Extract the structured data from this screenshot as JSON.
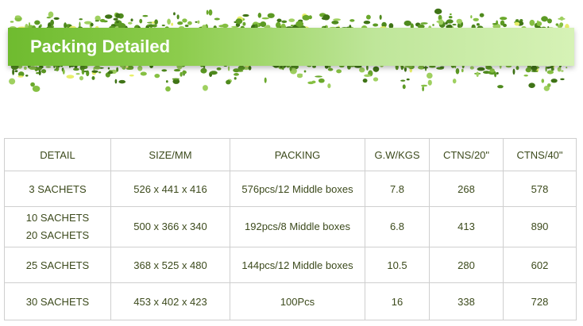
{
  "banner": {
    "title": "Packing Detailed",
    "colors": {
      "start": "#6fbb2f",
      "end": "#d6f2b6"
    }
  },
  "table": {
    "headers": [
      "DETAIL",
      "SIZE/MM",
      "PACKING",
      "G.W/KGS",
      "CTNS/20\"",
      "CTNS/40\""
    ],
    "rows": [
      {
        "detail": [
          "3 SACHETS"
        ],
        "size": "526 x 441 x 416",
        "packing": "576pcs/12 Middle boxes",
        "gw": "7.8",
        "ctns20": "268",
        "ctns40": "578"
      },
      {
        "detail": [
          "10 SACHETS",
          "20 SACHETS"
        ],
        "size": "500 x 366 x 340",
        "packing": "192pcs/8 Middle boxes",
        "gw": "6.8",
        "ctns20": "413",
        "ctns40": "890"
      },
      {
        "detail": [
          "25 SACHETS"
        ],
        "size": "368 x 525 x 480",
        "packing": "144pcs/12 Middle boxes",
        "gw": "10.5",
        "ctns20": "280",
        "ctns40": "602"
      },
      {
        "detail": [
          "30 SACHETS"
        ],
        "size": "453 x 402 x 423",
        "packing": "100Pcs",
        "gw": "16",
        "ctns20": "338",
        "ctns40": "728"
      }
    ]
  }
}
